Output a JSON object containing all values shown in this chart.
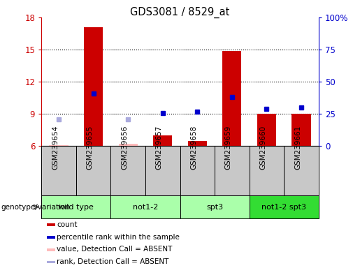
{
  "title": "GDS3081 / 8529_at",
  "samples": [
    "GSM239654",
    "GSM239655",
    "GSM239656",
    "GSM239657",
    "GSM239658",
    "GSM239659",
    "GSM239660",
    "GSM239661"
  ],
  "group_info": [
    {
      "label": "wild type",
      "start": 0,
      "end": 2,
      "color": "#aaffaa"
    },
    {
      "label": "not1-2",
      "start": 2,
      "end": 4,
      "color": "#aaffaa"
    },
    {
      "label": "spt3",
      "start": 4,
      "end": 6,
      "color": "#aaffaa"
    },
    {
      "label": "not1-2 spt3",
      "start": 6,
      "end": 8,
      "color": "#33dd33"
    }
  ],
  "count_values": [
    6.1,
    17.1,
    6.2,
    7.0,
    6.5,
    14.9,
    9.0,
    9.0
  ],
  "count_absent": [
    true,
    false,
    true,
    false,
    false,
    false,
    false,
    false
  ],
  "rank_values": [
    8.5,
    10.9,
    8.5,
    9.1,
    9.2,
    10.6,
    9.5,
    9.6
  ],
  "rank_absent": [
    true,
    false,
    true,
    false,
    false,
    false,
    false,
    false
  ],
  "ylim_left": [
    6,
    18
  ],
  "ylim_right": [
    0,
    100
  ],
  "yticks_left": [
    6,
    9,
    12,
    15,
    18
  ],
  "yticks_right": [
    0,
    25,
    50,
    75,
    100
  ],
  "ytick_right_labels": [
    "0",
    "25",
    "50",
    "75",
    "100%"
  ],
  "color_count": "#cc0000",
  "color_count_absent": "#ffbbbb",
  "color_rank": "#0000cc",
  "color_rank_absent": "#aaaadd",
  "bar_width": 0.55,
  "sample_box_color": "#c8c8c8",
  "fig_bg": "#ffffff",
  "legend_items": [
    {
      "label": "count",
      "color": "#cc0000"
    },
    {
      "label": "percentile rank within the sample",
      "color": "#0000cc"
    },
    {
      "label": "value, Detection Call = ABSENT",
      "color": "#ffbbbb"
    },
    {
      "label": "rank, Detection Call = ABSENT",
      "color": "#aaaadd"
    }
  ],
  "geno_label": "genotype/variation"
}
